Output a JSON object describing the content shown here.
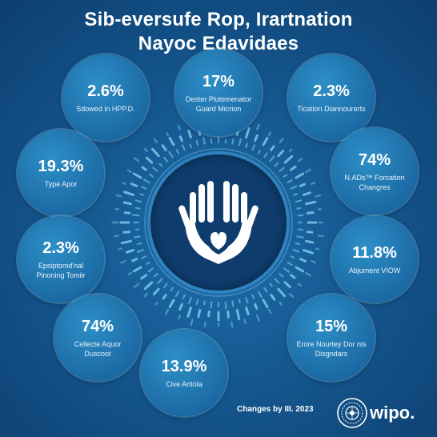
{
  "title": {
    "line1": "Sib-eversufe Rop, Irartnation",
    "line2": "Nayoc Edavidaes"
  },
  "stats": [
    {
      "value": "2.6%",
      "label": "Sdowed in HPP.D."
    },
    {
      "value": "17%",
      "label": "Dester Plutemenator Guard Micrion"
    },
    {
      "value": "2.3%",
      "label": "Tication Diannourerts"
    },
    {
      "value": "19.3%",
      "label": "Type Apor"
    },
    {
      "value": "74%",
      "label": "N.ADs™ Forcation Changres"
    },
    {
      "value": "2.3%",
      "label": "Epsiptomd'nal Pinoning Tomiir"
    },
    {
      "value": "11.8%",
      "label": "Abjument VIOW"
    },
    {
      "value": "74%",
      "label": "Cellecte Aquor Duscoot"
    },
    {
      "value": "15%",
      "label": "Erore Nourtey Dor nis Disgndars"
    },
    {
      "value": "13.9%",
      "label": "Cive Artiola"
    }
  ],
  "center_icon": "hands-heart-icon",
  "footer": {
    "text": "Changes by III. 2023",
    "logo_text": "wipo.",
    "logo_emblem": "wipo-emblem-icon"
  },
  "colors": {
    "background_dark": "#0d3f70",
    "background_mid": "#15578f",
    "circle": "#1c6aa5",
    "center": "#0e3c6c",
    "accent": "#7fd0f0"
  }
}
